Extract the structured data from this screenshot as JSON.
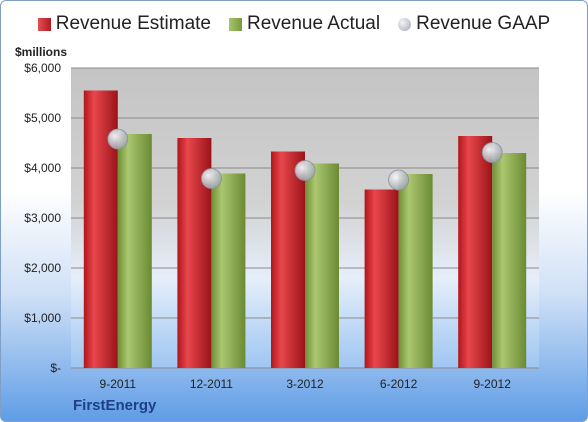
{
  "company": "FirstEnergy",
  "chart_data": {
    "type": "bar",
    "ylabel": "$millions",
    "xlabel": "",
    "categories": [
      "9-2011",
      "12-2011",
      "3-2012",
      "6-2012",
      "9-2012"
    ],
    "ylim": [
      0,
      6000
    ],
    "yticks": [
      0,
      1000,
      2000,
      3000,
      4000,
      5000,
      6000
    ],
    "ytick_labels": [
      "$-",
      "$1,000",
      "$2,000",
      "$3,000",
      "$4,000",
      "$5,000",
      "$6,000"
    ],
    "grid": true,
    "legend_position": "top",
    "series": [
      {
        "name": "Revenue Estimate",
        "kind": "bar",
        "color": "#cc2229",
        "values": [
          5550,
          4600,
          4330,
          3570,
          4640
        ]
      },
      {
        "name": "Revenue Actual",
        "kind": "bar",
        "color": "#8aaa4c",
        "values": [
          4680,
          3890,
          4090,
          3880,
          4300
        ]
      },
      {
        "name": "Revenue GAAP",
        "kind": "marker",
        "color": "#b8bcc6",
        "values": [
          4580,
          3790,
          3950,
          3760,
          4310
        ]
      }
    ]
  }
}
